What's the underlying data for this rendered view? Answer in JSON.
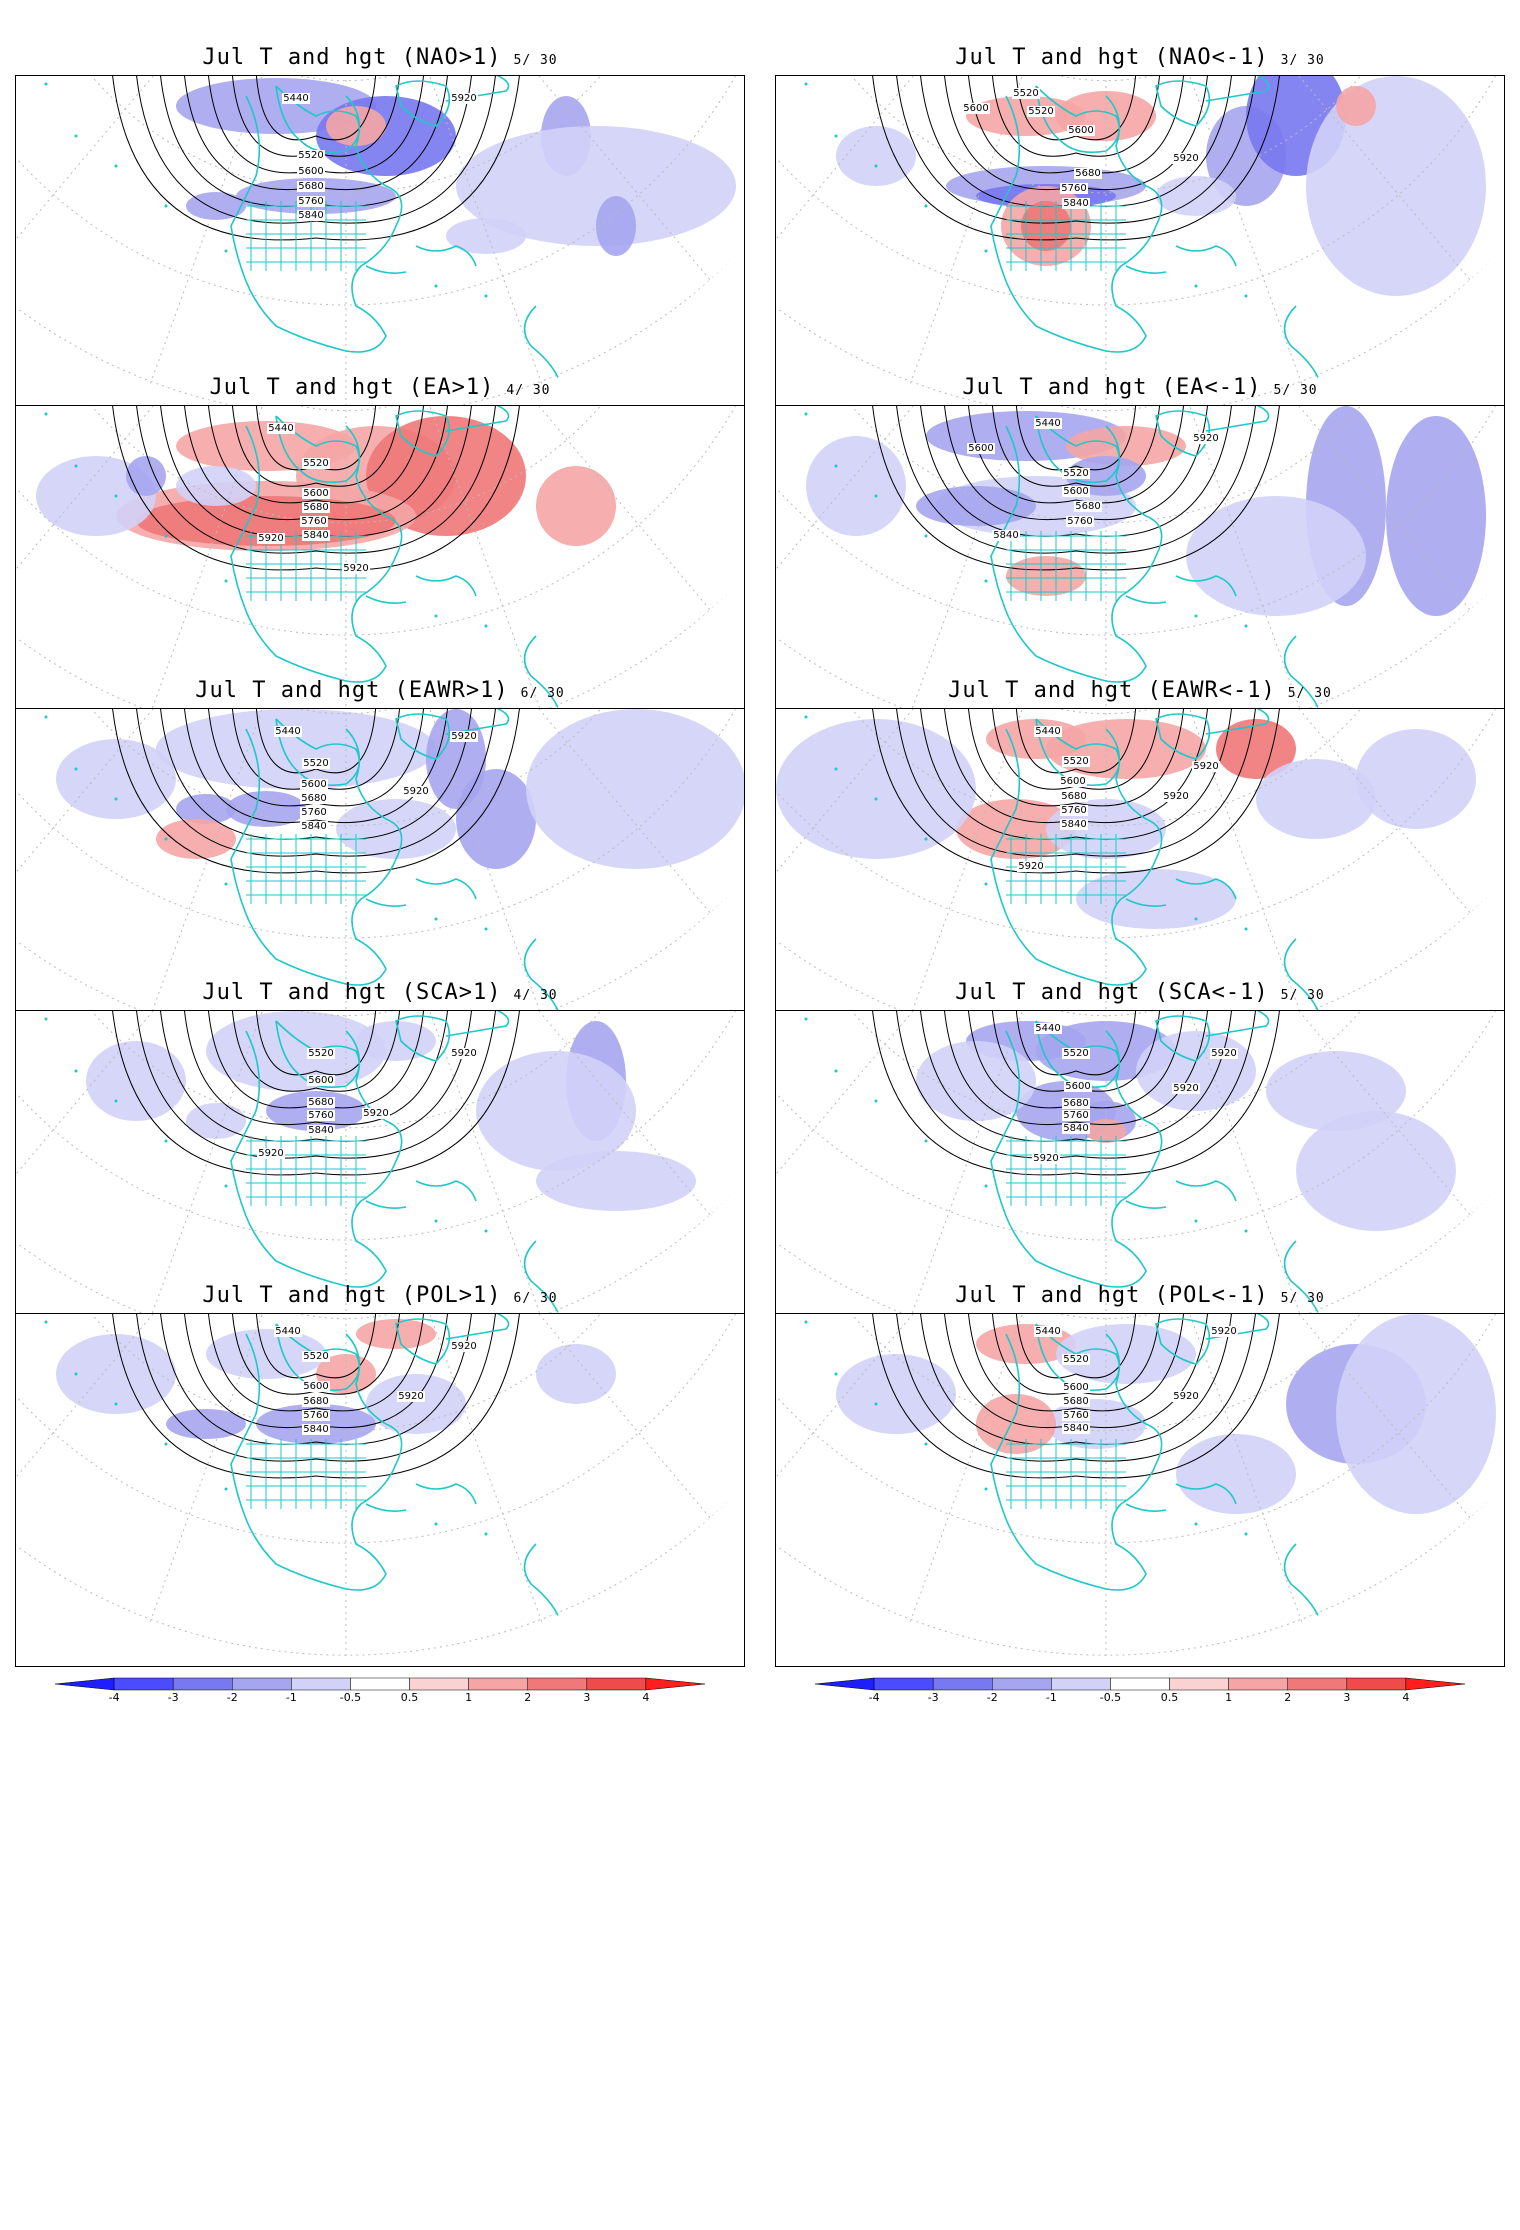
{
  "panels": [
    {
      "title": "Jul T and hgt (NAO>1)",
      "count": "5/ 30"
    },
    {
      "title": "Jul T and hgt (NAO<-1)",
      "count": "3/ 30"
    },
    {
      "title": "Jul T and hgt (EA>1)",
      "count": "4/ 30"
    },
    {
      "title": "Jul T and hgt (EA<-1)",
      "count": "5/ 30"
    },
    {
      "title": "Jul T and hgt (EAWR>1)",
      "count": "6/ 30"
    },
    {
      "title": "Jul T and hgt (EAWR<-1)",
      "count": "5/ 30"
    },
    {
      "title": "Jul T and hgt (SCA>1)",
      "count": "4/ 30"
    },
    {
      "title": "Jul T and hgt (SCA<-1)",
      "count": "5/ 30"
    },
    {
      "title": "Jul T and hgt (POL>1)",
      "count": "6/ 30"
    },
    {
      "title": "Jul T and hgt (POL<-1)",
      "count": "5/ 30"
    }
  ],
  "colorbar": {
    "labels": [
      "-4",
      "-3",
      "-2",
      "-1",
      "-0.5",
      "0.5",
      "1",
      "2",
      "3",
      "4"
    ],
    "colors": [
      "#1e1eff",
      "#4b4bff",
      "#7878f0",
      "#a5a5f0",
      "#d2d2f8",
      "#ffffff",
      "#fad2d2",
      "#f5a5a5",
      "#f07878",
      "#f04b4b",
      "#ff1e1e"
    ]
  },
  "contour_labels": [
    "5440",
    "5520",
    "5600",
    "5680",
    "5760",
    "5840",
    "5920"
  ],
  "colors": {
    "coastline": "#1ec8c8",
    "contour": "#000000",
    "grid": "#bbbbbb"
  }
}
